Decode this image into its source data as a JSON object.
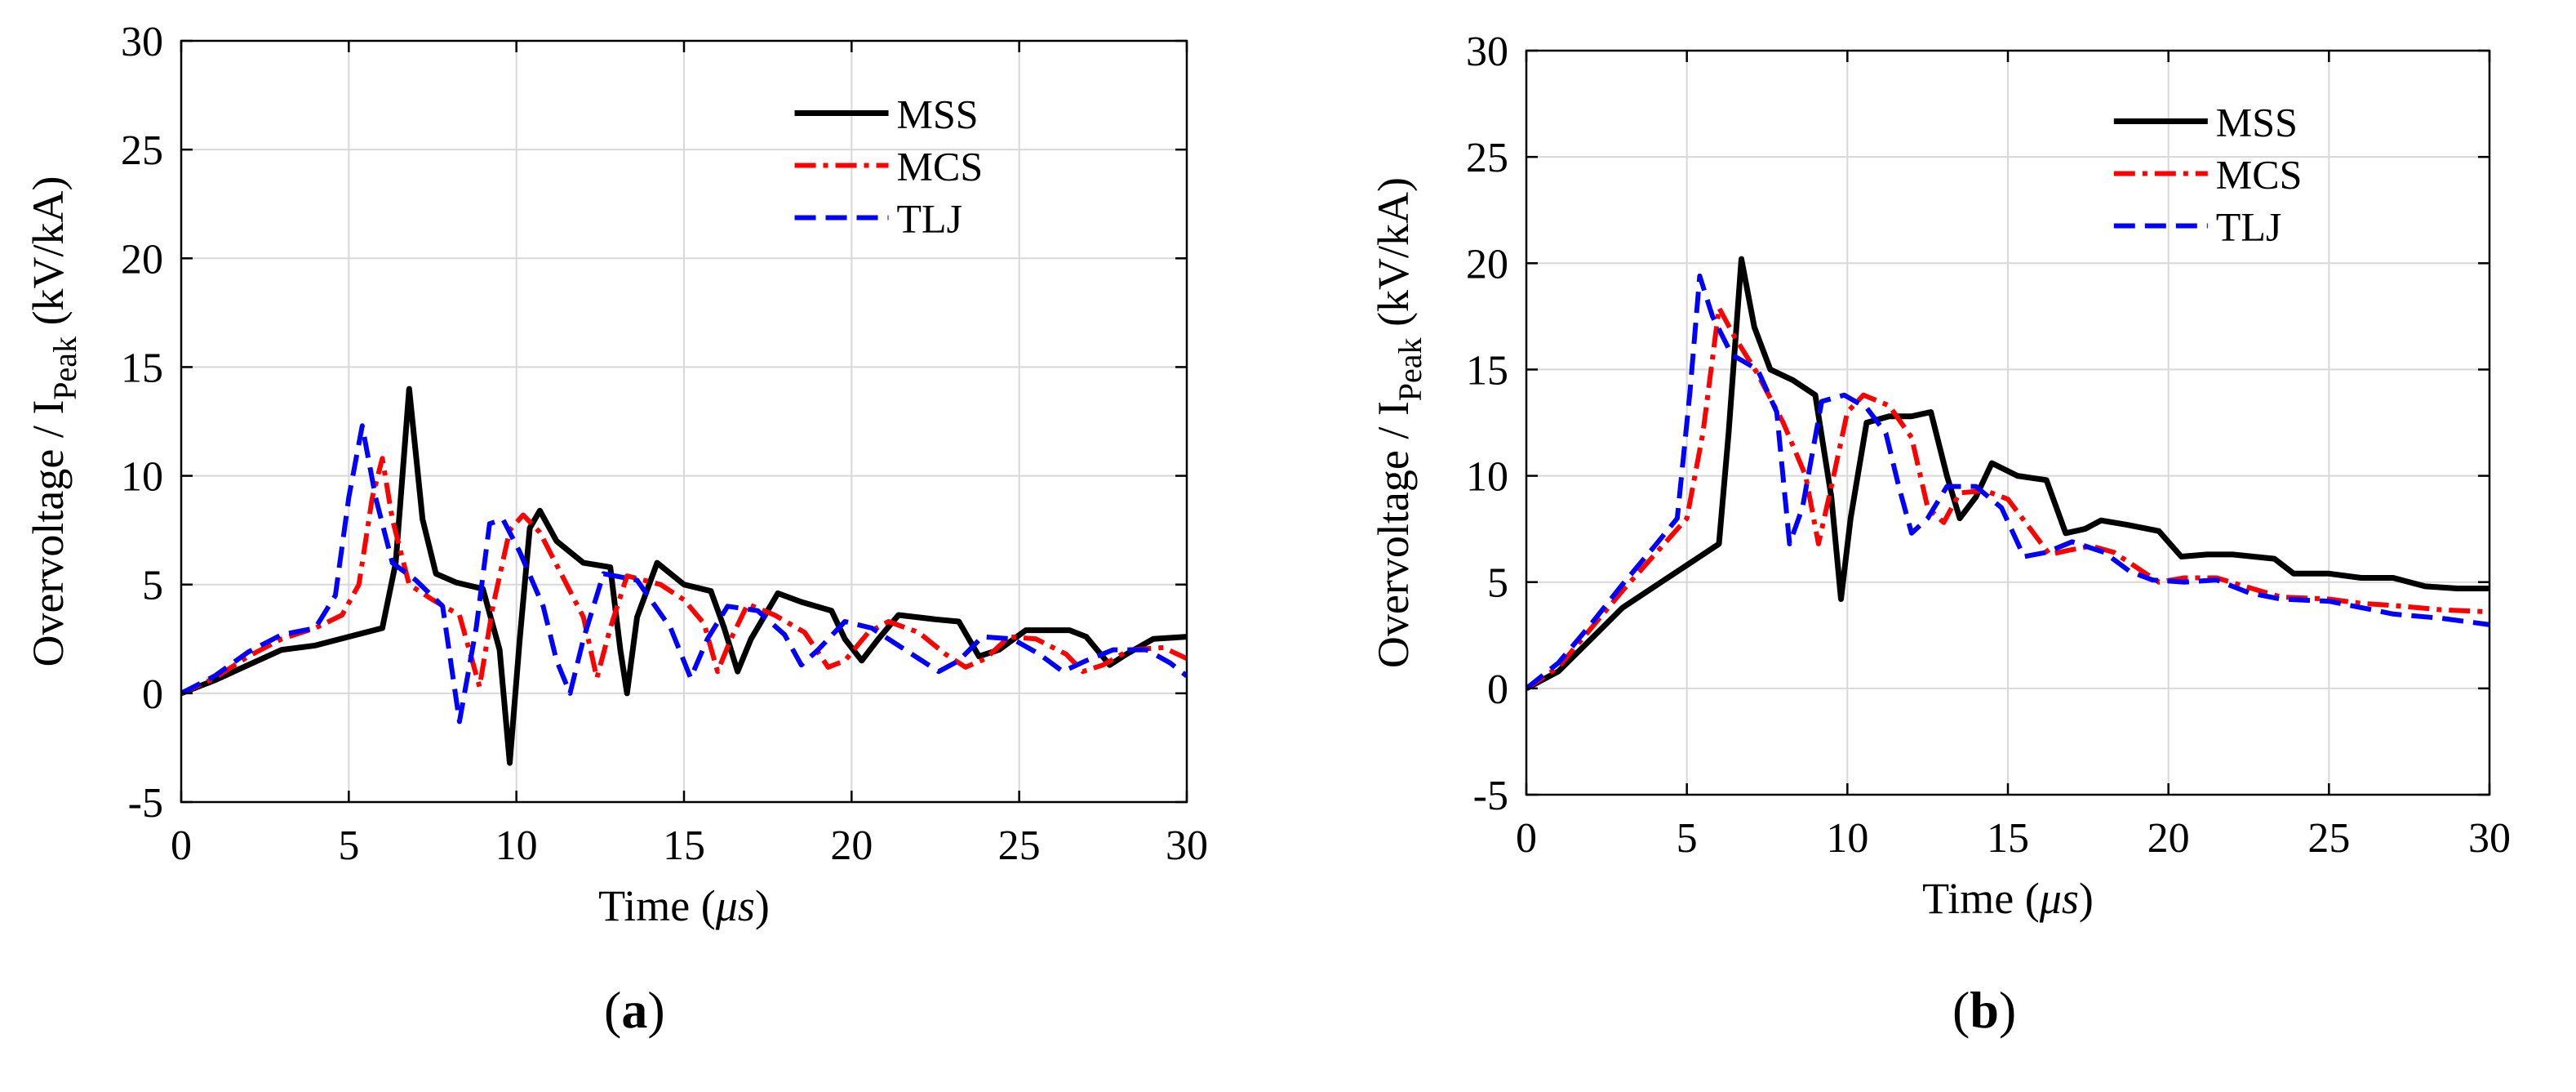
{
  "figure": {
    "panel_labels": [
      {
        "open": "(",
        "letter": "a",
        "close": ")"
      },
      {
        "open": "(",
        "letter": "b",
        "close": ")"
      }
    ]
  },
  "chart_data": [
    {
      "type": "line",
      "panel": "a",
      "title": "",
      "xlabel_main": "Time (",
      "xlabel_unit": "μs",
      "xlabel_close": ")",
      "ylabel_main": "Overvoltage / I",
      "ylabel_sub": "Peak",
      "ylabel_unit": " (kV/kA)",
      "xlim": [
        0,
        30
      ],
      "ylim": [
        -5,
        30
      ],
      "xticks": [
        0,
        5,
        10,
        15,
        20,
        25,
        30
      ],
      "yticks": [
        -5,
        0,
        5,
        10,
        15,
        20,
        25,
        30
      ],
      "grid": true,
      "legend_position": "top-right",
      "series": [
        {
          "name": "MSS",
          "color": "#000000",
          "style": "solid",
          "points": [
            [
              0,
              0
            ],
            [
              1,
              0.6
            ],
            [
              2,
              1.3
            ],
            [
              3,
              2.0
            ],
            [
              4,
              2.2
            ],
            [
              5,
              2.6
            ],
            [
              6,
              3.0
            ],
            [
              6.4,
              6.0
            ],
            [
              6.8,
              14.0
            ],
            [
              7.2,
              8.0
            ],
            [
              7.6,
              5.5
            ],
            [
              8.2,
              5.1
            ],
            [
              9.0,
              4.8
            ],
            [
              9.5,
              2.0
            ],
            [
              9.8,
              -3.2
            ],
            [
              10.1,
              2.5
            ],
            [
              10.4,
              7.6
            ],
            [
              10.7,
              8.4
            ],
            [
              11.2,
              7.0
            ],
            [
              12.0,
              6.0
            ],
            [
              12.8,
              5.8
            ],
            [
              13.1,
              2.0
            ],
            [
              13.3,
              0.0
            ],
            [
              13.6,
              3.5
            ],
            [
              14.2,
              6.0
            ],
            [
              15.0,
              5.0
            ],
            [
              15.8,
              4.7
            ],
            [
              16.2,
              3.0
            ],
            [
              16.6,
              1.0
            ],
            [
              17.0,
              2.5
            ],
            [
              17.8,
              4.6
            ],
            [
              18.5,
              4.2
            ],
            [
              19.4,
              3.8
            ],
            [
              19.8,
              2.5
            ],
            [
              20.3,
              1.5
            ],
            [
              20.8,
              2.5
            ],
            [
              21.4,
              3.6
            ],
            [
              22.5,
              3.4
            ],
            [
              23.2,
              3.3
            ],
            [
              23.8,
              1.7
            ],
            [
              24.4,
              2.0
            ],
            [
              25.2,
              2.9
            ],
            [
              26.5,
              2.9
            ],
            [
              27.0,
              2.6
            ],
            [
              27.7,
              1.3
            ],
            [
              28.2,
              1.8
            ],
            [
              29.0,
              2.5
            ],
            [
              30,
              2.6
            ]
          ]
        },
        {
          "name": "MCS",
          "color": "#ff0000",
          "style": "dashdot",
          "points": [
            [
              0,
              0
            ],
            [
              1,
              0.7
            ],
            [
              2,
              1.7
            ],
            [
              3,
              2.5
            ],
            [
              4,
              3.0
            ],
            [
              4.8,
              3.6
            ],
            [
              5.3,
              5.0
            ],
            [
              5.7,
              9.0
            ],
            [
              6.0,
              10.8
            ],
            [
              6.3,
              8.0
            ],
            [
              6.8,
              5.0
            ],
            [
              7.5,
              4.3
            ],
            [
              8.3,
              3.6
            ],
            [
              8.9,
              0.3
            ],
            [
              9.3,
              4.0
            ],
            [
              9.8,
              7.5
            ],
            [
              10.2,
              8.2
            ],
            [
              10.7,
              7.4
            ],
            [
              11.5,
              5.0
            ],
            [
              12.0,
              3.5
            ],
            [
              12.4,
              0.7
            ],
            [
              12.8,
              3.0
            ],
            [
              13.3,
              5.4
            ],
            [
              14.3,
              5.0
            ],
            [
              15.0,
              4.3
            ],
            [
              15.6,
              3.2
            ],
            [
              16.0,
              1.0
            ],
            [
              16.4,
              2.5
            ],
            [
              16.9,
              4.1
            ],
            [
              17.7,
              3.6
            ],
            [
              18.6,
              2.8
            ],
            [
              19.3,
              1.2
            ],
            [
              19.8,
              1.5
            ],
            [
              20.5,
              2.8
            ],
            [
              21.1,
              3.3
            ],
            [
              22.0,
              2.8
            ],
            [
              22.8,
              1.8
            ],
            [
              23.4,
              1.2
            ],
            [
              24.0,
              1.6
            ],
            [
              24.7,
              2.6
            ],
            [
              25.5,
              2.5
            ],
            [
              26.4,
              1.8
            ],
            [
              26.9,
              1.0
            ],
            [
              27.5,
              1.3
            ],
            [
              28.3,
              2.0
            ],
            [
              29.3,
              2.1
            ],
            [
              30,
              1.6
            ]
          ]
        },
        {
          "name": "TLJ",
          "color": "#0000ff",
          "style": "dashed",
          "points": [
            [
              0,
              0
            ],
            [
              1,
              0.8
            ],
            [
              2,
              1.9
            ],
            [
              3,
              2.7
            ],
            [
              4.0,
              3.0
            ],
            [
              4.6,
              4.5
            ],
            [
              5.0,
              9.0
            ],
            [
              5.4,
              12.3
            ],
            [
              5.8,
              9.0
            ],
            [
              6.3,
              6.0
            ],
            [
              7.0,
              5.2
            ],
            [
              7.8,
              4.0
            ],
            [
              8.3,
              -1.3
            ],
            [
              8.8,
              3.0
            ],
            [
              9.2,
              7.8
            ],
            [
              9.6,
              8.0
            ],
            [
              10.1,
              6.5
            ],
            [
              10.8,
              4.0
            ],
            [
              11.2,
              1.5
            ],
            [
              11.6,
              0.0
            ],
            [
              12.0,
              2.5
            ],
            [
              12.6,
              5.5
            ],
            [
              13.6,
              5.2
            ],
            [
              14.6,
              3.0
            ],
            [
              15.2,
              0.7
            ],
            [
              15.7,
              2.5
            ],
            [
              16.3,
              4.0
            ],
            [
              17.2,
              3.8
            ],
            [
              18.0,
              2.7
            ],
            [
              18.5,
              1.3
            ],
            [
              19.0,
              2.0
            ],
            [
              19.8,
              3.3
            ],
            [
              20.6,
              3.0
            ],
            [
              21.4,
              2.2
            ],
            [
              22.0,
              1.6
            ],
            [
              22.6,
              1.0
            ],
            [
              23.2,
              1.5
            ],
            [
              23.9,
              2.6
            ],
            [
              24.8,
              2.5
            ],
            [
              25.6,
              1.8
            ],
            [
              26.3,
              1.0
            ],
            [
              27.0,
              1.5
            ],
            [
              27.8,
              2.0
            ],
            [
              28.8,
              2.0
            ],
            [
              29.5,
              1.4
            ],
            [
              30,
              0.8
            ]
          ]
        }
      ]
    },
    {
      "type": "line",
      "panel": "b",
      "title": "",
      "xlabel_main": "Time (",
      "xlabel_unit": "μs",
      "xlabel_close": ")",
      "ylabel_main": "Overvoltage / I",
      "ylabel_sub": "Peak",
      "ylabel_unit": " (kV/kA)",
      "xlim": [
        0,
        30
      ],
      "ylim": [
        -5,
        30
      ],
      "xticks": [
        0,
        5,
        10,
        15,
        20,
        25,
        30
      ],
      "yticks": [
        -5,
        0,
        5,
        10,
        15,
        20,
        25,
        30
      ],
      "grid": true,
      "legend_position": "top-right",
      "series": [
        {
          "name": "MSS",
          "color": "#000000",
          "style": "solid",
          "points": [
            [
              0,
              0
            ],
            [
              1,
              0.8
            ],
            [
              2,
              2.3
            ],
            [
              3,
              3.8
            ],
            [
              4,
              4.8
            ],
            [
              5,
              5.8
            ],
            [
              6,
              6.8
            ],
            [
              6.3,
              12.0
            ],
            [
              6.7,
              20.2
            ],
            [
              7.1,
              17.0
            ],
            [
              7.6,
              15.0
            ],
            [
              8.3,
              14.5
            ],
            [
              9.0,
              13.8
            ],
            [
              9.5,
              9.0
            ],
            [
              9.8,
              4.2
            ],
            [
              10.1,
              8.0
            ],
            [
              10.6,
              12.5
            ],
            [
              11.3,
              12.8
            ],
            [
              12.0,
              12.8
            ],
            [
              12.6,
              13.0
            ],
            [
              13.1,
              10.0
            ],
            [
              13.5,
              8.0
            ],
            [
              14.0,
              9.0
            ],
            [
              14.5,
              10.6
            ],
            [
              15.3,
              10.0
            ],
            [
              16.2,
              9.8
            ],
            [
              16.8,
              7.3
            ],
            [
              17.4,
              7.5
            ],
            [
              17.9,
              7.9
            ],
            [
              18.7,
              7.7
            ],
            [
              19.7,
              7.4
            ],
            [
              20.4,
              6.2
            ],
            [
              21.2,
              6.3
            ],
            [
              22.0,
              6.3
            ],
            [
              23.3,
              6.1
            ],
            [
              23.9,
              5.4
            ],
            [
              25.0,
              5.4
            ],
            [
              26.0,
              5.2
            ],
            [
              27.0,
              5.2
            ],
            [
              28.0,
              4.8
            ],
            [
              29.0,
              4.7
            ],
            [
              30,
              4.7
            ]
          ]
        },
        {
          "name": "MCS",
          "color": "#ff0000",
          "style": "dashdot",
          "points": [
            [
              0,
              0
            ],
            [
              1,
              1.0
            ],
            [
              2,
              2.8
            ],
            [
              3,
              4.6
            ],
            [
              4,
              6.3
            ],
            [
              5,
              8.0
            ],
            [
              5.5,
              12.0
            ],
            [
              6.0,
              17.9
            ],
            [
              6.5,
              16.5
            ],
            [
              7.2,
              14.8
            ],
            [
              8.0,
              12.5
            ],
            [
              8.7,
              10.0
            ],
            [
              9.1,
              6.8
            ],
            [
              9.5,
              9.5
            ],
            [
              10.0,
              13.0
            ],
            [
              10.5,
              13.8
            ],
            [
              11.3,
              13.3
            ],
            [
              12.0,
              11.8
            ],
            [
              12.5,
              8.5
            ],
            [
              13.0,
              7.8
            ],
            [
              13.5,
              9.2
            ],
            [
              14.3,
              9.3
            ],
            [
              15.0,
              8.9
            ],
            [
              15.7,
              7.5
            ],
            [
              16.3,
              6.3
            ],
            [
              16.9,
              6.5
            ],
            [
              17.6,
              6.7
            ],
            [
              18.3,
              6.4
            ],
            [
              19.0,
              5.7
            ],
            [
              19.7,
              5.0
            ],
            [
              20.5,
              5.2
            ],
            [
              21.5,
              5.2
            ],
            [
              22.6,
              4.7
            ],
            [
              23.5,
              4.3
            ],
            [
              25.0,
              4.2
            ],
            [
              26.0,
              4.0
            ],
            [
              27.0,
              3.9
            ],
            [
              28.5,
              3.7
            ],
            [
              30,
              3.6
            ]
          ]
        },
        {
          "name": "TLJ",
          "color": "#0000ff",
          "style": "dashed",
          "points": [
            [
              0,
              0
            ],
            [
              1,
              1.2
            ],
            [
              2,
              3.0
            ],
            [
              3,
              4.9
            ],
            [
              4,
              6.7
            ],
            [
              4.7,
              8.0
            ],
            [
              5.1,
              14.0
            ],
            [
              5.4,
              19.4
            ],
            [
              5.8,
              17.5
            ],
            [
              6.4,
              15.7
            ],
            [
              7.2,
              15.0
            ],
            [
              7.8,
              13.0
            ],
            [
              8.2,
              6.8
            ],
            [
              8.6,
              8.5
            ],
            [
              9.2,
              13.5
            ],
            [
              9.9,
              13.8
            ],
            [
              10.6,
              13.2
            ],
            [
              11.2,
              12.0
            ],
            [
              11.6,
              9.5
            ],
            [
              12.0,
              7.3
            ],
            [
              12.5,
              8.0
            ],
            [
              13.1,
              9.5
            ],
            [
              14.0,
              9.5
            ],
            [
              14.8,
              8.5
            ],
            [
              15.5,
              6.2
            ],
            [
              16.2,
              6.4
            ],
            [
              17.0,
              6.9
            ],
            [
              18.0,
              6.4
            ],
            [
              18.8,
              5.5
            ],
            [
              19.5,
              5.1
            ],
            [
              20.5,
              5.0
            ],
            [
              21.5,
              5.1
            ],
            [
              22.5,
              4.5
            ],
            [
              23.5,
              4.2
            ],
            [
              25.0,
              4.1
            ],
            [
              26.0,
              3.8
            ],
            [
              27.0,
              3.5
            ],
            [
              28.5,
              3.3
            ],
            [
              29.5,
              3.1
            ],
            [
              30,
              3.0
            ]
          ]
        }
      ]
    }
  ]
}
